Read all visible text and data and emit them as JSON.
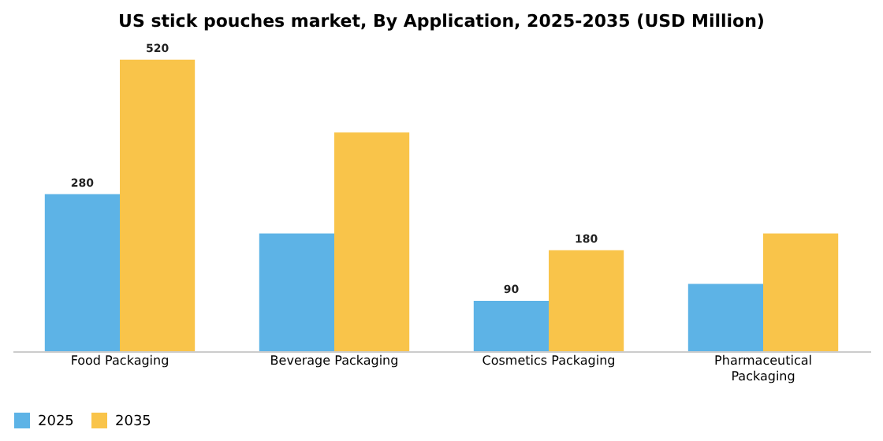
{
  "chart_data": {
    "type": "bar",
    "title": "US stick pouches market, By Application, 2025-2035 (USD Million)",
    "categories": [
      "Food Packaging",
      "Beverage Packaging",
      "Cosmetics Packaging",
      "Pharmaceutical Packaging"
    ],
    "series": [
      {
        "name": "2025",
        "color": "#5db3e6",
        "values": [
          280,
          210,
          90,
          120
        ],
        "value_labels": [
          "280",
          null,
          "90",
          null
        ]
      },
      {
        "name": "2035",
        "color": "#f9c44a",
        "values": [
          520,
          390,
          180,
          210
        ],
        "value_labels": [
          "520",
          null,
          "180",
          null
        ]
      }
    ],
    "legend": "bottom",
    "grid": false
  }
}
